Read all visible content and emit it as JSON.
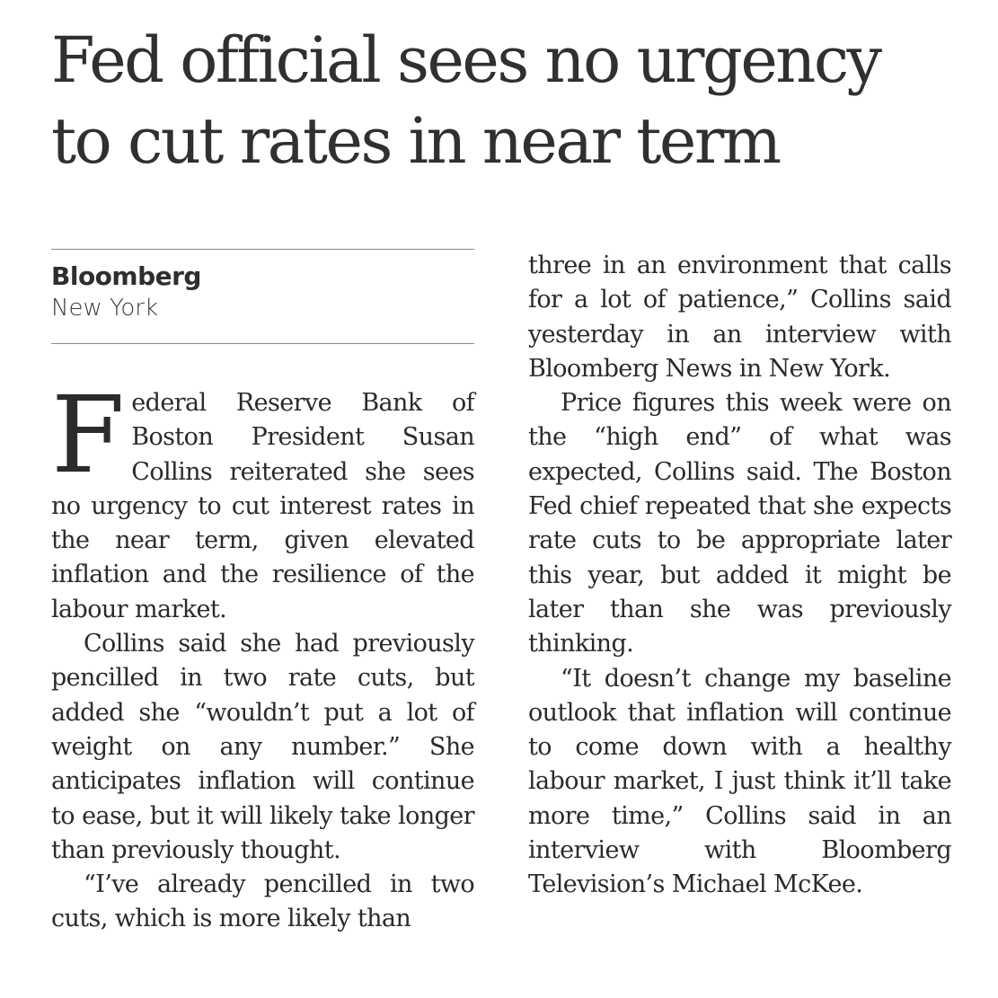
{
  "article": {
    "headline_line1": "Fed official sees no urgency",
    "headline_line2": "to cut rates in near term",
    "byline_source": "Bloomberg",
    "byline_place": "New York",
    "dropcap": "F",
    "p1_rest": "ederal Reserve Bank of Boston President Susan Collins reiterated she sees no urgency to cut interest rates in the near term, given elevated inflation and the resilience of the labour market.",
    "p2": "Collins said she had previously pencilled in two rate cuts, but added she “wouldn’t put a lot of weight on any number.” She anticipates inflation will continue to ease, but it will likely take longer than previously thought.",
    "p3": "“I’ve already pencilled in two cuts, which is more likely than three in an environment that calls for a lot of patience,” Collins said yesterday in an interview with Bloomberg News in New York.",
    "p4": "Price figures this week were on the “high end” of what was expected, Collins said. The Boston Fed chief repeated that she expects rate cuts to be appropriate later this year, but added it might be later than she was previously thinking.",
    "p5": "“It doesn’t change my baseline outlook that inflation will continue to come down with a healthy labour market, I just think it’ll take more time,” Collins said in an interview with Bloomberg Television’s Michael McKee."
  }
}
